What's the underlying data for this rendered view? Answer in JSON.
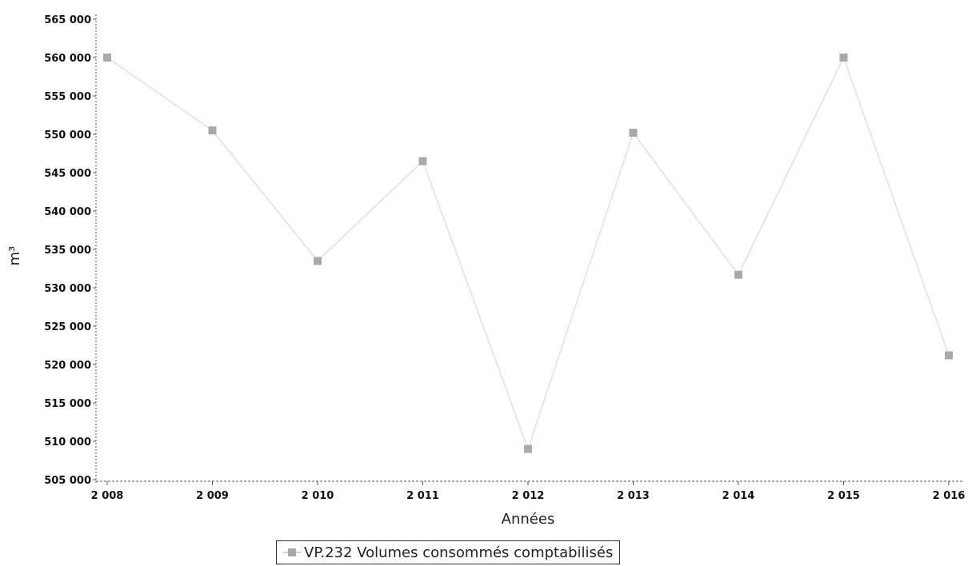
{
  "chart_data": {
    "type": "line",
    "title": "",
    "xlabel": "Années",
    "ylabel": "m³",
    "categories": [
      "2 008",
      "2 009",
      "2 010",
      "2 011",
      "2 012",
      "2 013",
      "2 014",
      "2 015",
      "2 016"
    ],
    "series": [
      {
        "name": "VP.232 Volumes consommés comptabilisés",
        "values": [
          560000,
          550500,
          533500,
          546500,
          509000,
          550200,
          531700,
          560000,
          521200
        ]
      }
    ],
    "ylim": [
      505000,
      565000
    ],
    "yticks": [
      505000,
      510000,
      515000,
      520000,
      525000,
      530000,
      535000,
      540000,
      545000,
      550000,
      555000,
      560000,
      565000
    ],
    "ytick_labels": [
      "505 000",
      "510 000",
      "515 000",
      "520 000",
      "525 000",
      "530 000",
      "535 000",
      "540 000",
      "545 000",
      "550 000",
      "555 000",
      "560 000",
      "565 000"
    ],
    "grid": false,
    "legend_position": "bottom-center",
    "colors": {
      "line": "#e6e6e6",
      "marker": "#a9a9a9",
      "axis": "#555555"
    }
  }
}
